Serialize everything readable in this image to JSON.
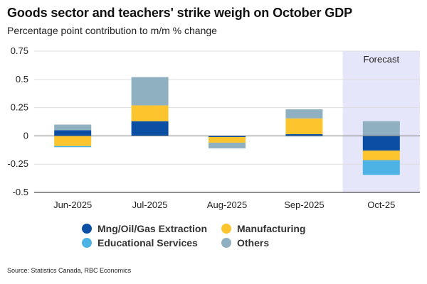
{
  "header": {
    "title": "Goods sector and teachers' strike weigh on October GDP",
    "subtitle": "Percentage point contribution to m/m % change"
  },
  "footer": {
    "source": "Source: Statistics Canada, RBC Economics"
  },
  "colors": {
    "mng": "#0a4fa3",
    "manufacturing": "#fcc52e",
    "education": "#4cb3e4",
    "others": "#8fb0c1",
    "forecast_bg": "#e6e6fb",
    "zero_line": "#777777",
    "grid": "#dddddd"
  },
  "chart_data": {
    "type": "stacked-bar",
    "title": "Goods sector and teachers' strike weigh on October GDP",
    "ylabel": "Percentage point contribution to m/m % change",
    "categories": [
      "Jun-2025",
      "Jul-2025",
      "Aug-2025",
      "Sep-2025",
      "Oct-25"
    ],
    "ylim": [
      -0.5,
      0.75
    ],
    "yticks": [
      0.75,
      0.5,
      0.25,
      0,
      -0.25,
      -0.5
    ],
    "ytick_labels": [
      "0.75",
      "0.5",
      "0.25",
      "0",
      "-0.25",
      "-0.5"
    ],
    "forecast_category_index": 4,
    "forecast_label": "Forecast",
    "legend_position": "bottom",
    "series": [
      {
        "name": "Mng/Oil/Gas Extraction",
        "color_key": "mng",
        "values": [
          0.05,
          0.13,
          -0.01,
          0.015,
          -0.13
        ]
      },
      {
        "name": "Manufacturing",
        "color_key": "manufacturing",
        "values": [
          -0.09,
          0.14,
          -0.05,
          0.14,
          -0.085
        ]
      },
      {
        "name": "Educational Services",
        "color_key": "education",
        "values": [
          -0.01,
          0.0,
          0.0,
          -0.005,
          -0.13
        ]
      },
      {
        "name": "Others",
        "color_key": "others",
        "values": [
          0.05,
          0.25,
          -0.05,
          0.08,
          0.13
        ]
      }
    ]
  }
}
